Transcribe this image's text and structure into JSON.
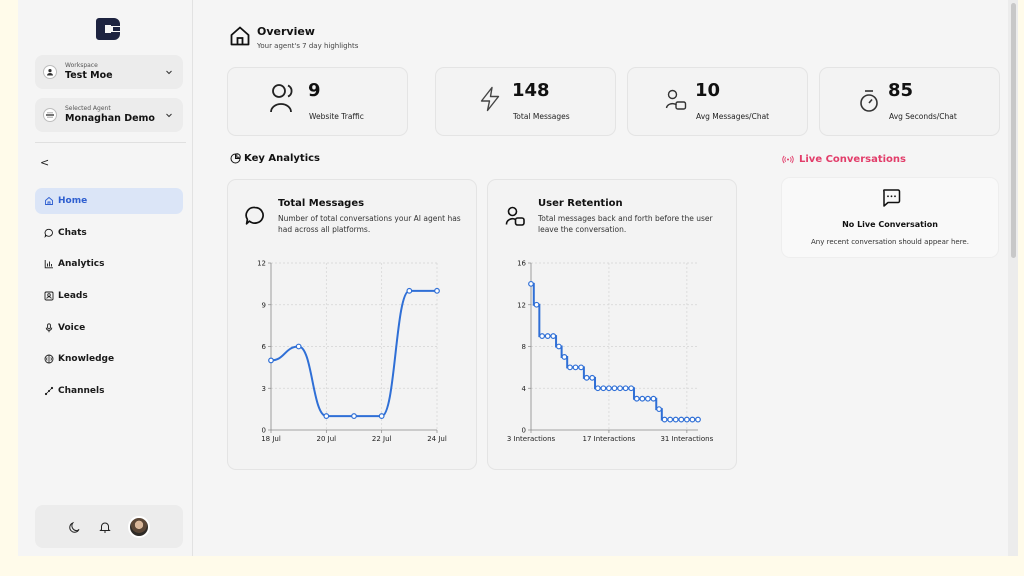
{
  "sidebar": {
    "workspace": {
      "label": "Workspace",
      "value": "Test Moe"
    },
    "agent": {
      "label": "Selected Agent",
      "value": "Monaghan Demo"
    },
    "collapse_label": "<",
    "nav": [
      {
        "label": "Home",
        "icon": "home-icon",
        "active": true
      },
      {
        "label": "Chats",
        "icon": "chat-icon",
        "active": false
      },
      {
        "label": "Analytics",
        "icon": "analytics-icon",
        "active": false
      },
      {
        "label": "Leads",
        "icon": "leads-icon",
        "active": false
      },
      {
        "label": "Voice",
        "icon": "microphone-icon",
        "active": false
      },
      {
        "label": "Knowledge",
        "icon": "knowledge-icon",
        "active": false
      },
      {
        "label": "Channels",
        "icon": "channels-icon",
        "active": false
      }
    ]
  },
  "overview": {
    "title": "Overview",
    "subtitle": "Your agent's 7 day highlights"
  },
  "stats": [
    {
      "value": "9",
      "label": "Website Traffic",
      "icon": "users-icon"
    },
    {
      "value": "148",
      "label": "Total Messages",
      "icon": "lightning-icon"
    },
    {
      "value": "10",
      "label": "Avg Messages/Chat",
      "icon": "user-message-icon"
    },
    {
      "value": "85",
      "label": "Avg Seconds/Chat",
      "icon": "stopwatch-icon"
    }
  ],
  "key_analytics": {
    "title": "Key Analytics"
  },
  "total_messages_panel": {
    "title": "Total Messages",
    "description": "Number of total conversations your AI agent has had across all platforms."
  },
  "user_retention_panel": {
    "title": "User Retention",
    "description": "Total messages back and forth before the user leave the conversation."
  },
  "live": {
    "title": "Live Conversations",
    "empty_title": "No Live Conversation",
    "empty_subtitle": "Any recent conversation should appear here."
  },
  "colors": {
    "accent": "#2f6fd6",
    "active_bg": "#dbe5f7",
    "live": "#e23d6a"
  },
  "chart_data": [
    {
      "type": "line",
      "title": "Total Messages",
      "x": [
        "18 Jul",
        "19 Jul",
        "20 Jul",
        "21 Jul",
        "22 Jul",
        "23 Jul",
        "24 Jul"
      ],
      "x_tick_labels": [
        "18 Jul",
        "20 Jul",
        "22 Jul",
        "24 Jul"
      ],
      "values": [
        5,
        6,
        1,
        1,
        1,
        10,
        10
      ],
      "ylim": [
        0,
        12
      ],
      "y_ticks": [
        0,
        3,
        6,
        9,
        12
      ],
      "grid": true,
      "xlabel": "",
      "ylabel": ""
    },
    {
      "type": "line",
      "title": "User Retention",
      "x": [
        3,
        4,
        5,
        6,
        7,
        8,
        9,
        10,
        11,
        12,
        13,
        14,
        15,
        16,
        17,
        18,
        19,
        20,
        21,
        22,
        23,
        24,
        25,
        26,
        27,
        28,
        29,
        30,
        31,
        32,
        33
      ],
      "x_tick_labels": [
        "3 Interactions",
        "17 Interactions",
        "31 Interactions"
      ],
      "x_tick_values": [
        3,
        17,
        31
      ],
      "values": [
        14,
        12,
        9,
        9,
        9,
        8,
        7,
        6,
        6,
        6,
        5,
        5,
        4,
        4,
        4,
        4,
        4,
        4,
        4,
        3,
        3,
        3,
        3,
        2,
        1,
        1,
        1,
        1,
        1,
        1,
        1
      ],
      "ylim": [
        0,
        16
      ],
      "y_ticks": [
        0,
        4,
        8,
        12,
        16
      ],
      "step": true,
      "grid": true,
      "xlabel": "",
      "ylabel": ""
    }
  ]
}
